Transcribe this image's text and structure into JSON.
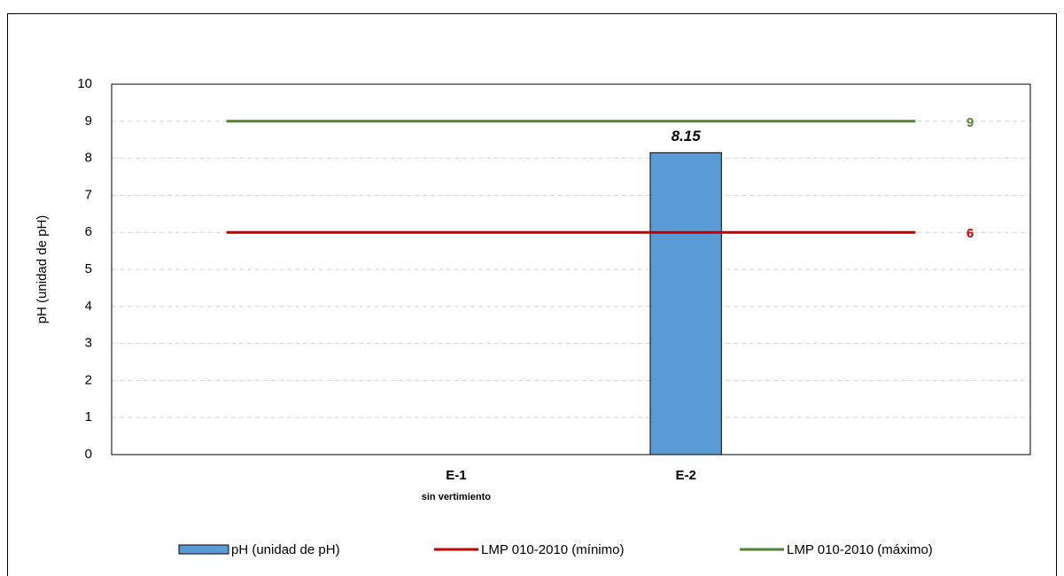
{
  "chart_data": {
    "type": "bar",
    "y_label": "pH (unidad de pH)",
    "categories": [
      null,
      "E-1",
      "E-2",
      null
    ],
    "category_sublabels": [
      null,
      "sin vertimiento",
      null,
      null
    ],
    "series": [
      {
        "name": "pH (unidad de pH)",
        "type": "bar",
        "color": "#5b9bd5",
        "values": [
          null,
          null,
          8.15,
          null
        ]
      },
      {
        "name": "LMP 010-2010 (mínimo)",
        "type": "line",
        "color": "#c00000",
        "values": [
          6,
          6,
          6,
          6
        ]
      },
      {
        "name": "LMP 010-2010 (máximo)",
        "type": "line",
        "color": "#548235",
        "values": [
          9,
          9,
          9,
          9
        ]
      }
    ],
    "ylim": [
      0,
      10
    ],
    "yticks": [
      0,
      1,
      2,
      3,
      4,
      5,
      6,
      7,
      8,
      9,
      10
    ],
    "grid": true,
    "legend": "bottom"
  }
}
